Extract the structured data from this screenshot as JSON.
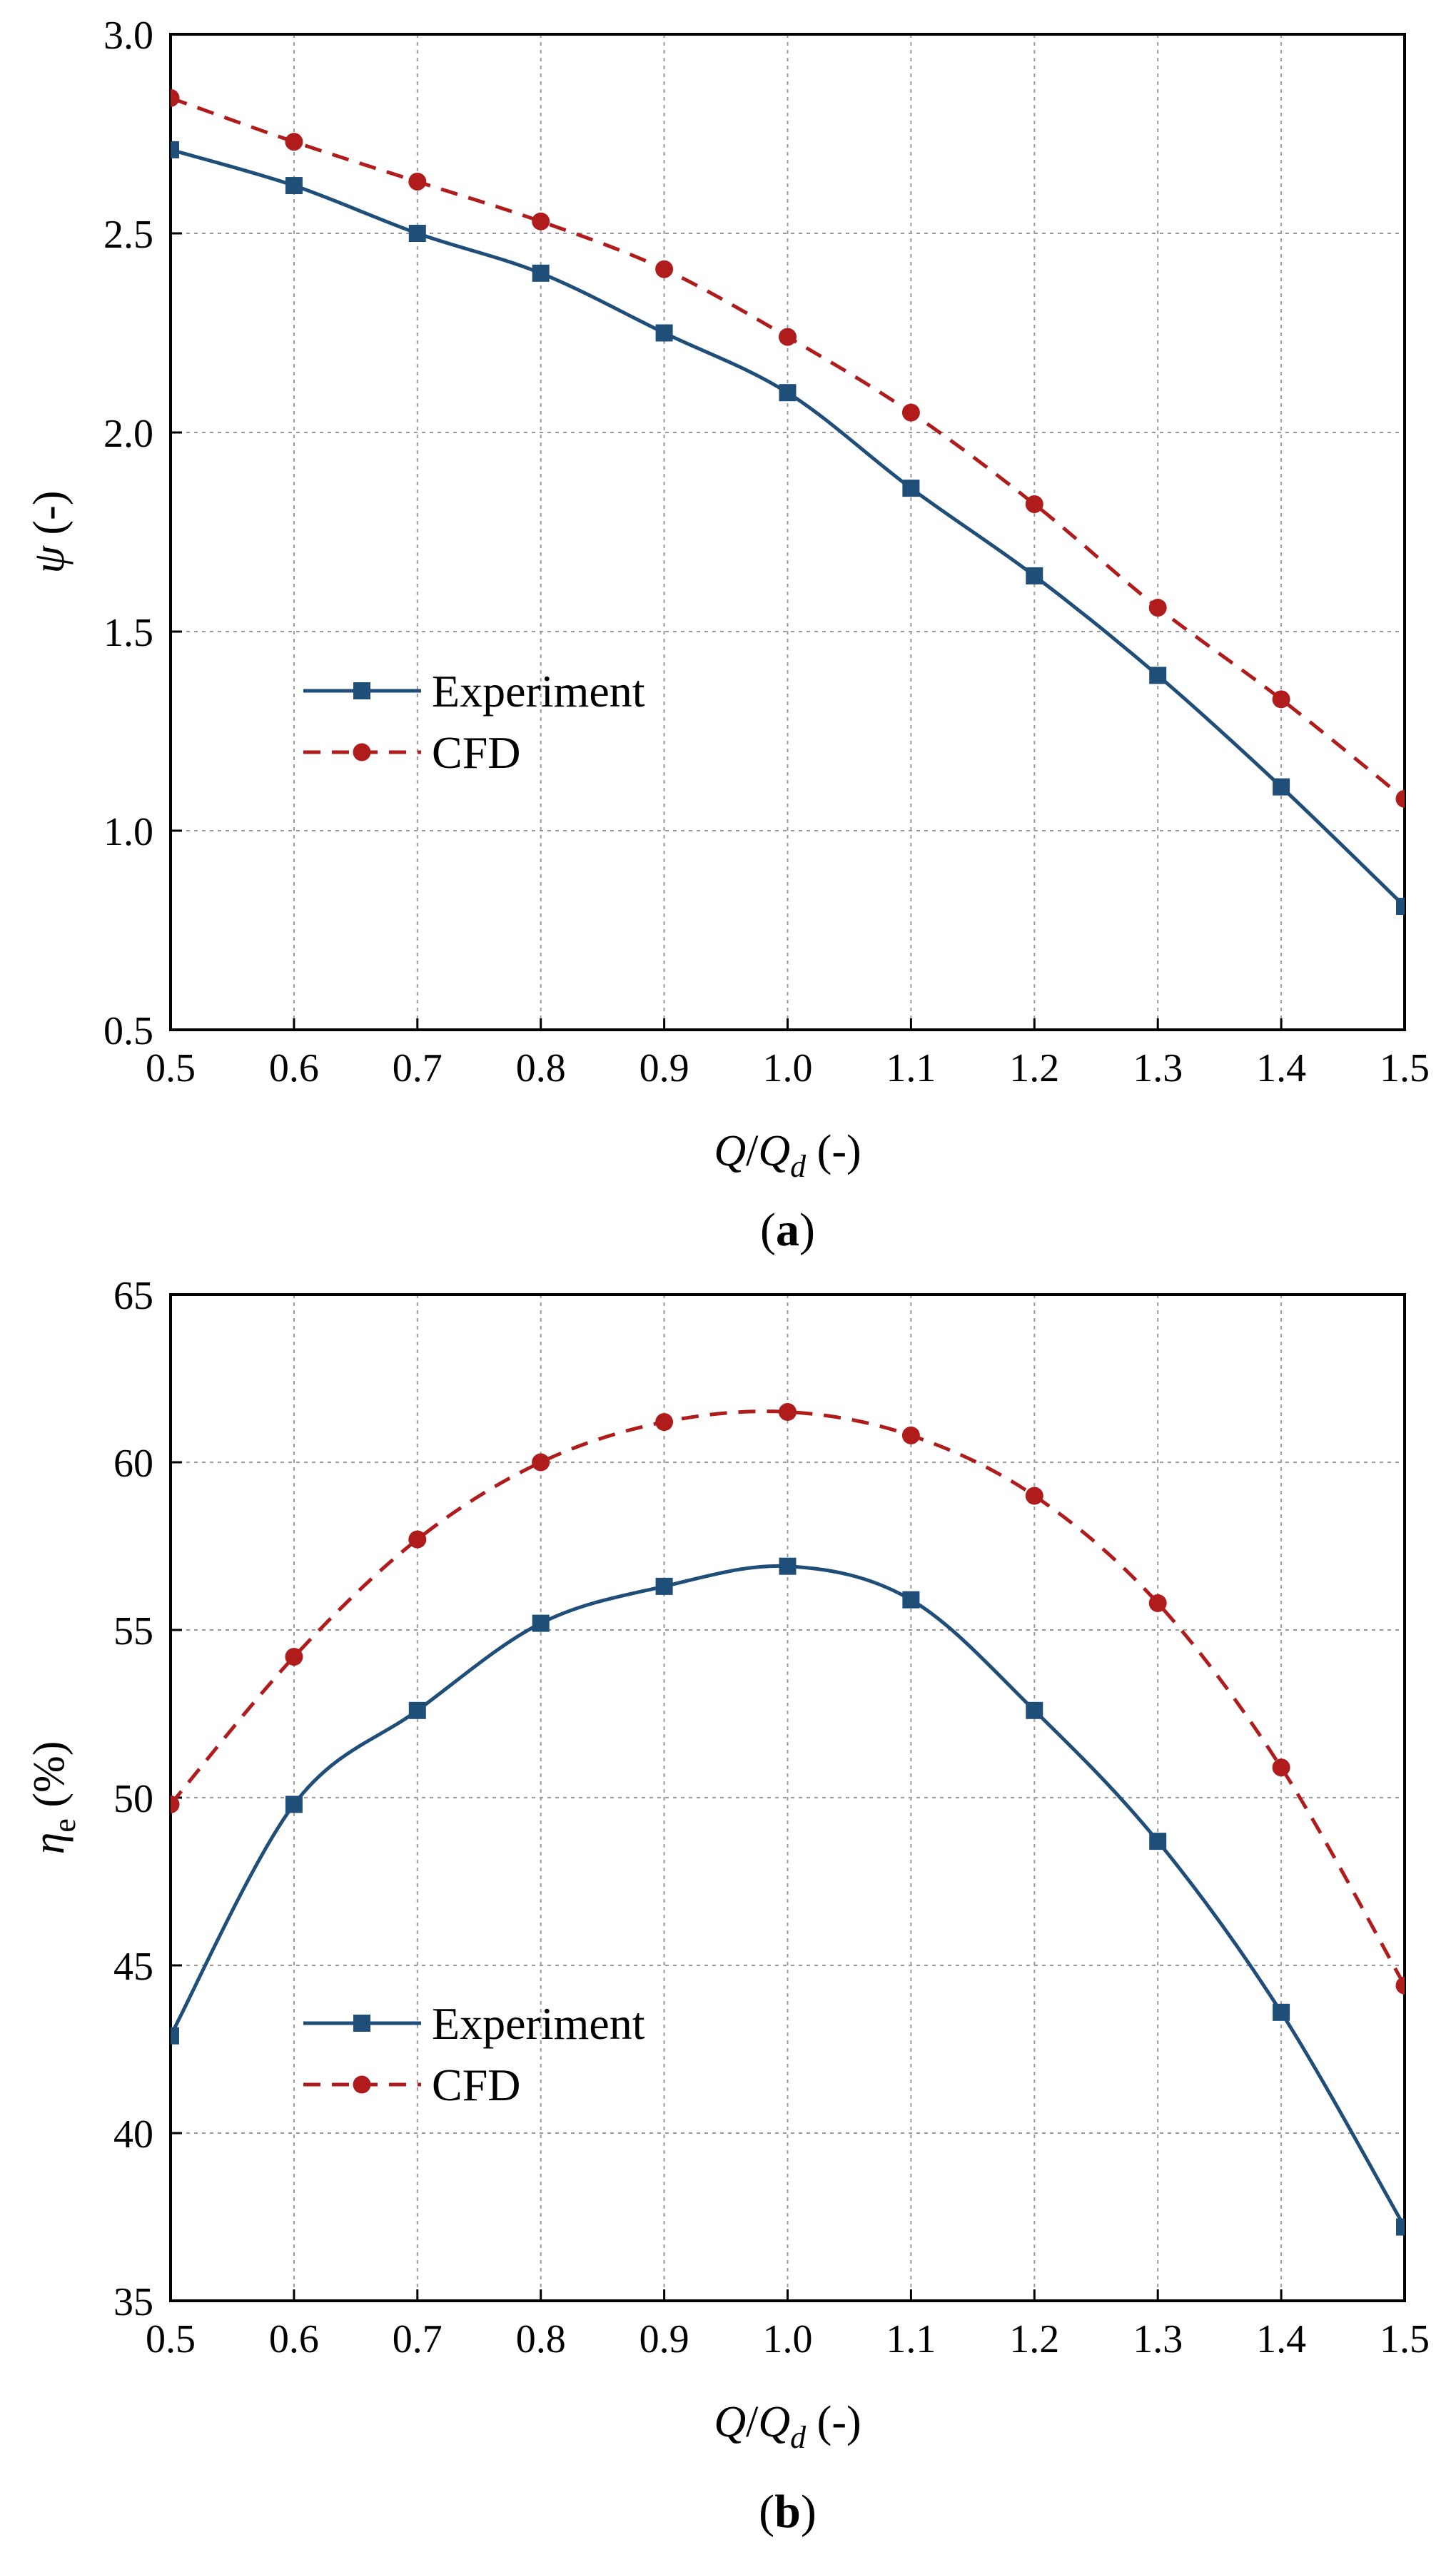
{
  "chart_data": [
    {
      "type": "line",
      "panel_label": "a",
      "title": "",
      "xlabel": {
        "var": "Q",
        "sep": "/",
        "var2": "Q",
        "sub": "d",
        "unit": " (-)"
      },
      "ylabel": {
        "var": "ψ",
        "sub": "",
        "unit": " (-)"
      },
      "xlim": [
        0.5,
        1.5
      ],
      "ylim": [
        0.5,
        3.0
      ],
      "xticks": [
        "0.5",
        "0.6",
        "0.7",
        "0.8",
        "0.9",
        "1.0",
        "1.1",
        "1.2",
        "1.3",
        "1.4",
        "1.5"
      ],
      "yticks": [
        "0.5",
        "1.0",
        "1.5",
        "2.0",
        "2.5",
        "3.0"
      ],
      "grid": true,
      "legend_position": "middle-left",
      "x": [
        0.5,
        0.6,
        0.7,
        0.8,
        0.9,
        1.0,
        1.1,
        1.2,
        1.3,
        1.4,
        1.5
      ],
      "series": [
        {
          "name": "Experiment",
          "color": "#1f4e79",
          "marker": "square",
          "style": "solid",
          "values": [
            2.71,
            2.62,
            2.5,
            2.4,
            2.25,
            2.1,
            1.86,
            1.64,
            1.39,
            1.11,
            0.81
          ]
        },
        {
          "name": "CFD",
          "color": "#b01c1c",
          "marker": "circle",
          "style": "dashed",
          "values": [
            2.84,
            2.73,
            2.63,
            2.53,
            2.41,
            2.24,
            2.05,
            1.82,
            1.56,
            1.33,
            1.08
          ]
        }
      ]
    },
    {
      "type": "line",
      "panel_label": "b",
      "title": "",
      "xlabel": {
        "var": "Q",
        "sep": "/",
        "var2": "Q",
        "sub": "d",
        "unit": " (-)"
      },
      "ylabel": {
        "var": "η",
        "sub": "e",
        "unit": " (%)"
      },
      "xlim": [
        0.5,
        1.5
      ],
      "ylim": [
        35,
        65
      ],
      "xticks": [
        "0.5",
        "0.6",
        "0.7",
        "0.8",
        "0.9",
        "1.0",
        "1.1",
        "1.2",
        "1.3",
        "1.4",
        "1.5"
      ],
      "yticks": [
        "35",
        "40",
        "45",
        "50",
        "55",
        "60",
        "65"
      ],
      "grid": true,
      "legend_position": "bottom-left",
      "x": [
        0.5,
        0.6,
        0.7,
        0.8,
        0.9,
        1.0,
        1.1,
        1.2,
        1.3,
        1.4,
        1.5
      ],
      "series": [
        {
          "name": "Experiment",
          "color": "#1f4e79",
          "marker": "square",
          "style": "solid",
          "values": [
            42.9,
            49.8,
            52.6,
            55.2,
            56.3,
            56.9,
            55.9,
            52.6,
            48.7,
            43.6,
            37.2
          ]
        },
        {
          "name": "CFD",
          "color": "#b01c1c",
          "marker": "circle",
          "style": "dashed",
          "values": [
            49.8,
            54.2,
            57.7,
            60.0,
            61.2,
            61.5,
            60.8,
            59.0,
            55.8,
            50.9,
            44.4
          ]
        }
      ]
    }
  ]
}
